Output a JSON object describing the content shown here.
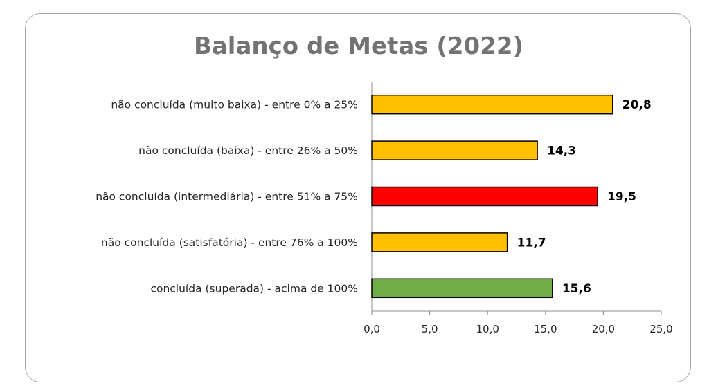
{
  "chart_data": {
    "type": "bar",
    "orientation": "horizontal",
    "title": "Balanço de Metas (2022)",
    "categories": [
      "não concluída (muito baixa) - entre 0% a 25%",
      "não concluída (baixa) - entre 26% a 50%",
      "não concluída (intermediária) - entre 51% a 75%",
      "não concluída (satisfatória) - entre 76% a 100%",
      "concluída (superada) - acima de 100%"
    ],
    "values": [
      20.8,
      14.3,
      19.5,
      11.7,
      15.6
    ],
    "value_labels": [
      "20,8",
      "14,3",
      "19,5",
      "11,7",
      "15,6"
    ],
    "bar_colors": [
      "#FFC000",
      "#FFC000",
      "#FF0000",
      "#FFC000",
      "#70AD47"
    ],
    "xlim": [
      0,
      25
    ],
    "x_ticks": [
      0,
      5,
      10,
      15,
      20,
      25
    ],
    "x_tick_labels": [
      "0,0",
      "5,0",
      "10,0",
      "15,0",
      "20,0",
      "25,0"
    ],
    "grid": false,
    "legend": "none"
  }
}
